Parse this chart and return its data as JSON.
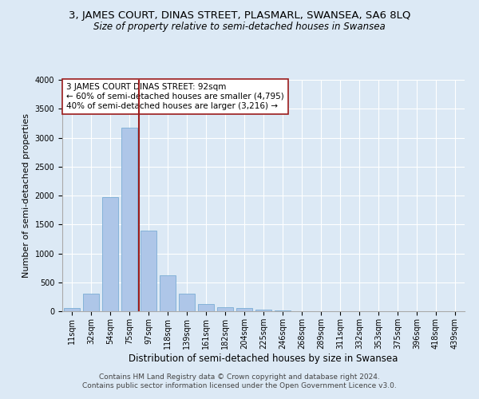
{
  "title1": "3, JAMES COURT, DINAS STREET, PLASMARL, SWANSEA, SA6 8LQ",
  "title2": "Size of property relative to semi-detached houses in Swansea",
  "xlabel": "Distribution of semi-detached houses by size in Swansea",
  "ylabel": "Number of semi-detached properties",
  "footer1": "Contains HM Land Registry data © Crown copyright and database right 2024.",
  "footer2": "Contains public sector information licensed under the Open Government Licence v3.0.",
  "categories": [
    "11sqm",
    "32sqm",
    "54sqm",
    "75sqm",
    "97sqm",
    "118sqm",
    "139sqm",
    "161sqm",
    "182sqm",
    "204sqm",
    "225sqm",
    "246sqm",
    "268sqm",
    "289sqm",
    "311sqm",
    "332sqm",
    "353sqm",
    "375sqm",
    "396sqm",
    "418sqm",
    "439sqm"
  ],
  "values": [
    50,
    300,
    1975,
    3175,
    1400,
    625,
    300,
    125,
    75,
    50,
    25,
    10,
    5,
    3,
    2,
    2,
    1,
    1,
    1,
    1,
    1
  ],
  "bar_color": "#aec6e8",
  "bar_edge_color": "#7aadd4",
  "vline_color": "#9b1b1b",
  "annotation_text": "3 JAMES COURT DINAS STREET: 92sqm\n← 60% of semi-detached houses are smaller (4,795)\n40% of semi-detached houses are larger (3,216) →",
  "annotation_box_color": "#ffffff",
  "annotation_box_edge": "#9b1b1b",
  "ylim": [
    0,
    4000
  ],
  "yticks": [
    0,
    500,
    1000,
    1500,
    2000,
    2500,
    3000,
    3500,
    4000
  ],
  "background_color": "#dce9f5",
  "grid_color": "#ffffff",
  "title1_fontsize": 9.5,
  "title2_fontsize": 8.5,
  "xlabel_fontsize": 8.5,
  "ylabel_fontsize": 8,
  "tick_fontsize": 7,
  "footer_fontsize": 6.5,
  "annotation_fontsize": 7.5
}
